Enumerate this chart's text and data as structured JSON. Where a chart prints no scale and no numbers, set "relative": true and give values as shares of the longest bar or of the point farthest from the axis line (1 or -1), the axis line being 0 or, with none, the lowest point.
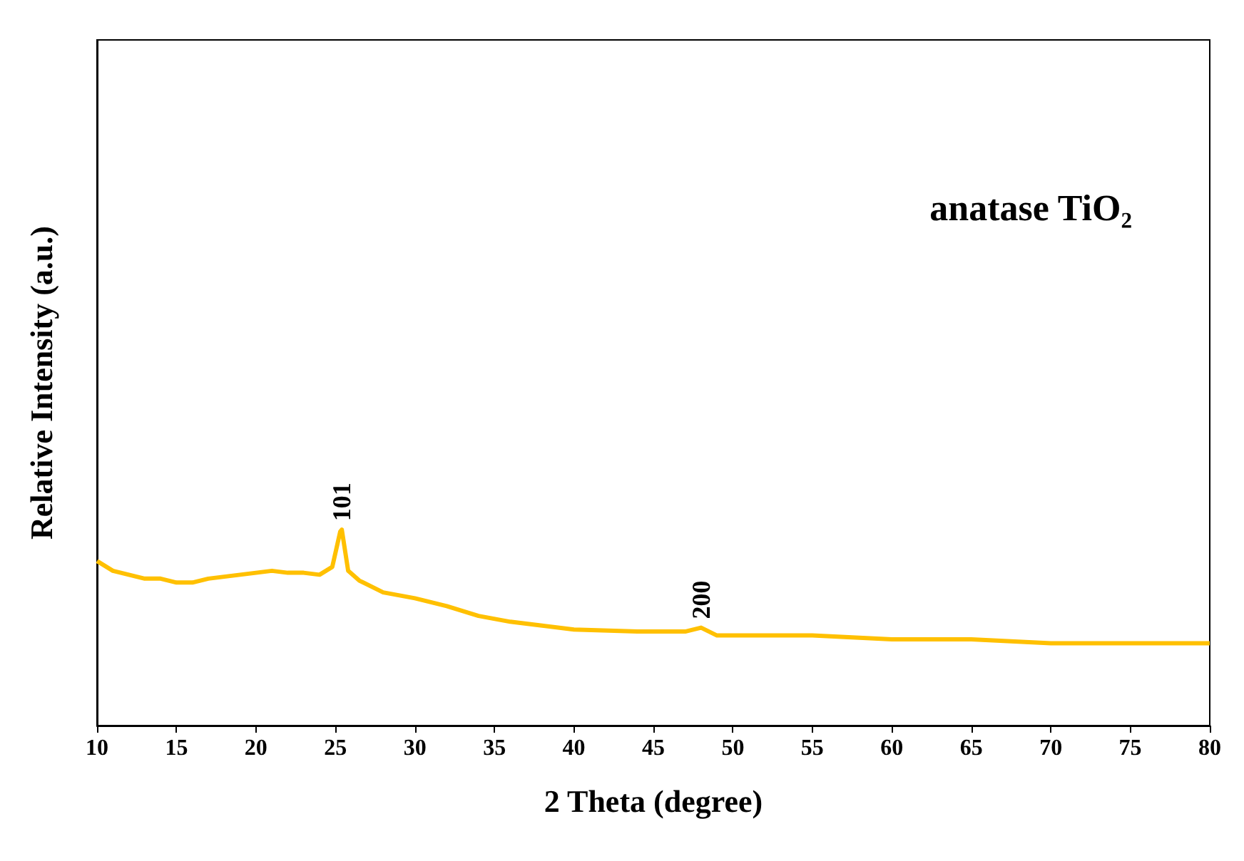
{
  "chart_data": {
    "type": "line",
    "relative": true,
    "xlabel": "2 Theta (degree)",
    "ylabel": "Relative Intensity (a.u.)",
    "xlim": [
      10,
      80
    ],
    "xticks": [
      10,
      15,
      20,
      25,
      30,
      35,
      40,
      45,
      50,
      55,
      60,
      65,
      70,
      75,
      80
    ],
    "grid": false,
    "marker": "none",
    "x": [
      10,
      11,
      12,
      13,
      14,
      15,
      16,
      17,
      18,
      19,
      20,
      21,
      22,
      23,
      24,
      24.8,
      25.3,
      25.4,
      25.8,
      26.5,
      28,
      30,
      32,
      34,
      36,
      38,
      40,
      44,
      47,
      48,
      49,
      52,
      55,
      60,
      65,
      70,
      75,
      80
    ],
    "series": [
      {
        "color": "#ffc000",
        "values": [
          0.84,
          0.79,
          0.77,
          0.75,
          0.75,
          0.73,
          0.73,
          0.75,
          0.76,
          0.77,
          0.78,
          0.79,
          0.78,
          0.78,
          0.77,
          0.81,
          0.99,
          1,
          0.79,
          0.74,
          0.68,
          0.65,
          0.61,
          0.56,
          0.53,
          0.51,
          0.49,
          0.48,
          0.48,
          0.5,
          0.46,
          0.46,
          0.46,
          0.44,
          0.44,
          0.42,
          0.42,
          0.42
        ]
      }
    ],
    "annotations": [
      {
        "text": "101",
        "x": 25.4,
        "y": 1
      },
      {
        "text": "200",
        "x": 48,
        "y": 0.5
      },
      "anatase TiO₂"
    ]
  }
}
